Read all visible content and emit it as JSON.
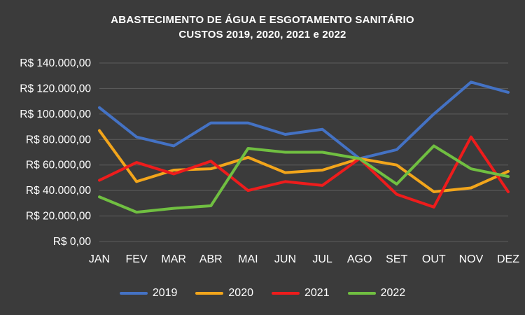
{
  "chart_data": {
    "type": "line",
    "title_line1": "ABASTECIMENTO DE ÁGUA E ESGOTAMENTO SANITÁRIO",
    "title_line2": "CUSTOS 2019, 2020, 2021 e 2022",
    "background_color": "#3B3B3B",
    "text_color": "#FFFFFF",
    "gridline_color": "#5E5E5E",
    "grid": true,
    "legend_position": "bottom",
    "ylim": [
      0,
      140000
    ],
    "y_ticks": [
      {
        "value": 140000,
        "label": "R$ 140.000,00"
      },
      {
        "value": 120000,
        "label": "R$ 120.000,00"
      },
      {
        "value": 100000,
        "label": "R$ 100.000,00"
      },
      {
        "value": 80000,
        "label": "R$ 80.000,00"
      },
      {
        "value": 60000,
        "label": "R$ 60.000,00"
      },
      {
        "value": 40000,
        "label": "R$ 40.000,00"
      },
      {
        "value": 20000,
        "label": "R$ 20.000,00"
      },
      {
        "value": 0,
        "label": "R$ 0,00"
      }
    ],
    "categories": [
      "JAN",
      "FEV",
      "MAR",
      "ABR",
      "MAI",
      "JUN",
      "JUL",
      "AGO",
      "SET",
      "OUT",
      "NOV",
      "DEZ"
    ],
    "series": [
      {
        "name": "2019",
        "color": "#4472C4",
        "values": [
          105000,
          82000,
          75000,
          93000,
          93000,
          84000,
          88000,
          65000,
          72000,
          100000,
          125000,
          117000
        ]
      },
      {
        "name": "2020",
        "color": "#F2A51B",
        "values": [
          87000,
          47000,
          56000,
          57000,
          66000,
          54000,
          56000,
          65000,
          60000,
          39000,
          42000,
          55000
        ]
      },
      {
        "name": "2021",
        "color": "#EE1C1C",
        "values": [
          48000,
          62000,
          53000,
          63000,
          40000,
          47000,
          44000,
          65000,
          37000,
          27000,
          82000,
          39000
        ]
      },
      {
        "name": "2022",
        "color": "#70BF41",
        "values": [
          35000,
          23000,
          26000,
          28000,
          73000,
          70000,
          70000,
          65000,
          45000,
          75000,
          57000,
          51000
        ]
      }
    ]
  }
}
